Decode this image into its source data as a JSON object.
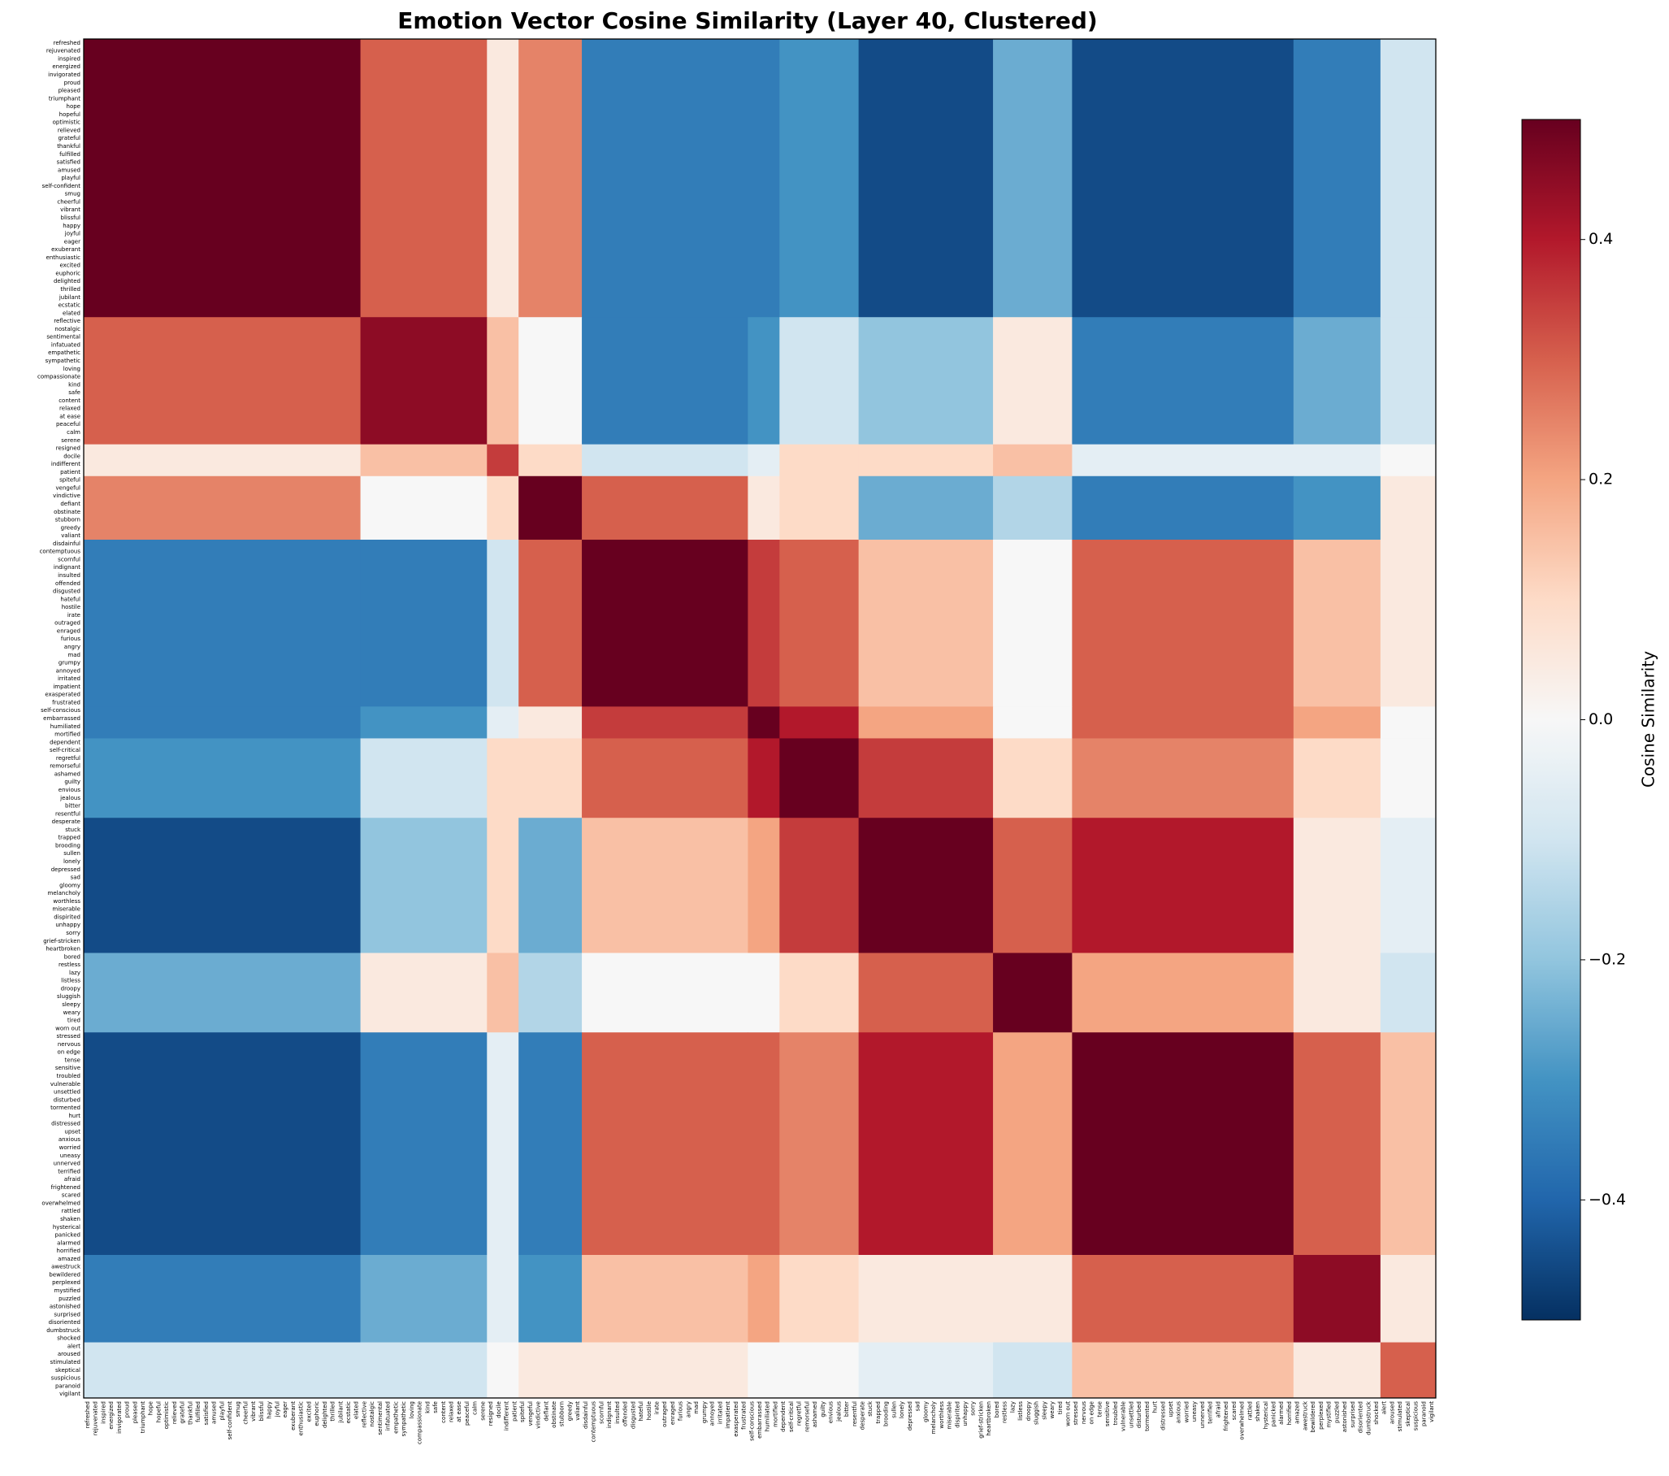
{
  "chart_data": {
    "type": "heatmap",
    "title": "Emotion Vector Cosine Similarity (Layer 40, Clustered)",
    "colorbar_label": "Cosine Similarity",
    "clim": [
      -0.5,
      0.5
    ],
    "cticks": [
      {
        "value": -0.4,
        "label": "−0.4"
      },
      {
        "value": -0.2,
        "label": "−0.2"
      },
      {
        "value": 0,
        "label": "0.0"
      },
      {
        "value": 0.2,
        "label": "0.2"
      },
      {
        "value": 0.4,
        "label": "0.4"
      }
    ],
    "clusters": [
      [
        "refreshed",
        "rejuvenated",
        "inspired",
        "energized",
        "invigorated",
        "proud",
        "pleased",
        "triumphant",
        "hope",
        "hopeful",
        "optimistic",
        "relieved",
        "grateful",
        "thankful",
        "fulfilled",
        "satisfied",
        "amused",
        "playful",
        "self-confident",
        "smug",
        "cheerful",
        "vibrant",
        "blissful",
        "happy",
        "joyful",
        "eager",
        "exuberant",
        "enthusiastic",
        "excited",
        "euphoric",
        "delighted",
        "thrilled",
        "jubilant",
        "ecstatic",
        "elated"
      ],
      [
        "reflective",
        "nostalgic",
        "sentimental",
        "infatuated",
        "empathetic",
        "sympathetic",
        "loving",
        "compassionate",
        "kind",
        "safe",
        "content",
        "relaxed",
        "at ease",
        "peaceful",
        "calm",
        "serene"
      ],
      [
        "resigned",
        "docile",
        "indifferent",
        "patient"
      ],
      [
        "spiteful",
        "vengeful",
        "vindictive",
        "defiant",
        "obstinate",
        "stubborn",
        "greedy",
        "valiant"
      ],
      [
        "disdainful",
        "contemptuous",
        "scornful",
        "indignant",
        "insulted",
        "offended",
        "disgusted",
        "hateful",
        "hostile",
        "irate",
        "outraged",
        "enraged",
        "furious",
        "angry",
        "mad",
        "grumpy",
        "annoyed",
        "irritated",
        "impatient",
        "exasperated",
        "frustrated"
      ],
      [
        "self-conscious",
        "embarrassed",
        "humiliated",
        "mortified"
      ],
      [
        "dependent",
        "self-critical",
        "regretful",
        "remorseful",
        "ashamed",
        "guilty",
        "envious",
        "jealous",
        "bitter",
        "resentful"
      ],
      [
        "desperate",
        "stuck",
        "trapped",
        "brooding",
        "sullen",
        "lonely",
        "depressed",
        "sad",
        "gloomy",
        "melancholy",
        "worthless",
        "miserable",
        "dispirited",
        "unhappy",
        "sorry",
        "grief-stricken",
        "heartbroken"
      ],
      [
        "bored",
        "restless",
        "lazy",
        "listless",
        "droopy",
        "sluggish",
        "sleepy",
        "weary",
        "tired",
        "worn out"
      ],
      [
        "stressed",
        "nervous",
        "on edge",
        "tense",
        "sensitive",
        "troubled",
        "vulnerable",
        "unsettled",
        "disturbed",
        "tormented",
        "hurt",
        "distressed",
        "upset",
        "anxious",
        "worried",
        "uneasy",
        "unnerved",
        "terrified",
        "afraid",
        "frightened",
        "scared",
        "overwhelmed",
        "rattled",
        "shaken",
        "hysterical",
        "panicked",
        "alarmed",
        "horrified"
      ],
      [
        "amazed",
        "awestruck",
        "bewildered",
        "perplexed",
        "mystified",
        "puzzled",
        "astonished",
        "surprised",
        "disoriented",
        "dumbstruck",
        "shocked"
      ],
      [
        "alert",
        "aroused",
        "stimulated",
        "skeptical",
        "suspicious",
        "paranoid",
        "vigilant"
      ]
    ],
    "values": [
      [
        0.5,
        0.3,
        0.05,
        0.25,
        -0.35,
        -0.35,
        -0.3,
        -0.45,
        -0.25,
        -0.45,
        -0.35,
        -0.1
      ],
      [
        0.3,
        0.45,
        0.15,
        0,
        -0.35,
        -0.3,
        -0.1,
        -0.2,
        0.05,
        -0.35,
        -0.25,
        -0.1
      ],
      [
        0.05,
        0.15,
        0.35,
        0.1,
        -0.1,
        -0.05,
        0.1,
        0.1,
        0.15,
        -0.05,
        -0.05,
        0
      ],
      [
        0.25,
        0,
        0.1,
        0.5,
        0.3,
        0.05,
        0.1,
        -0.25,
        -0.15,
        -0.35,
        -0.3,
        0.05
      ],
      [
        -0.35,
        -0.35,
        -0.1,
        0.3,
        0.5,
        0.35,
        0.3,
        0.15,
        0,
        0.3,
        0.15,
        0.05
      ],
      [
        -0.35,
        -0.3,
        -0.05,
        0.05,
        0.35,
        0.5,
        0.4,
        0.2,
        0,
        0.3,
        0.2,
        0
      ],
      [
        -0.3,
        -0.1,
        0.1,
        0.1,
        0.3,
        0.4,
        0.5,
        0.35,
        0.1,
        0.25,
        0.1,
        0
      ],
      [
        -0.45,
        -0.2,
        0.1,
        -0.25,
        0.15,
        0.2,
        0.35,
        0.5,
        0.3,
        0.4,
        0.05,
        -0.05
      ],
      [
        -0.25,
        0.05,
        0.15,
        -0.15,
        0,
        0,
        0.1,
        0.3,
        0.5,
        0.2,
        0.05,
        -0.1
      ],
      [
        -0.45,
        -0.35,
        -0.05,
        -0.35,
        0.3,
        0.3,
        0.25,
        0.4,
        0.2,
        0.5,
        0.3,
        0.15
      ],
      [
        -0.35,
        -0.25,
        -0.05,
        -0.3,
        0.15,
        0.2,
        0.1,
        0.05,
        0.05,
        0.3,
        0.45,
        0.05
      ],
      [
        -0.1,
        -0.1,
        0,
        0.05,
        0.05,
        0,
        0,
        -0.05,
        -0.1,
        0.15,
        0.05,
        0.3
      ]
    ]
  }
}
